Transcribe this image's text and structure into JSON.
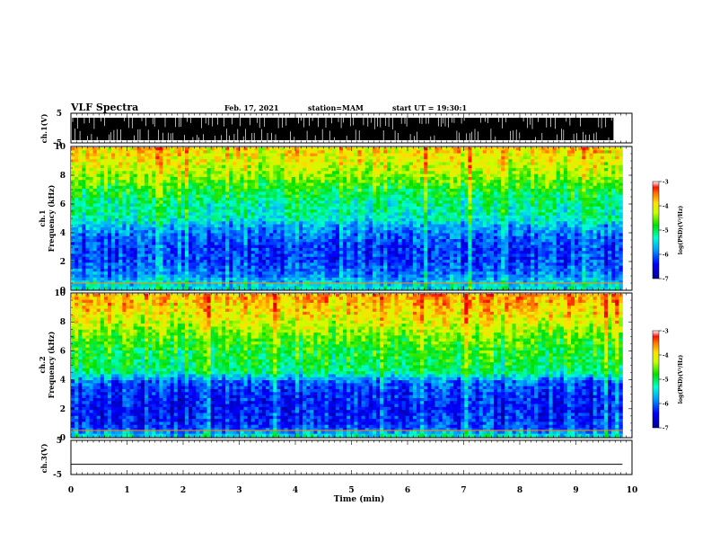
{
  "header": {
    "title": "VLF Spectra",
    "date": "Feb. 17, 2021",
    "station": "station=MAM",
    "start": "start UT = 19:30:1"
  },
  "chart_data": [
    {
      "type": "line",
      "name": "ch1-waveform",
      "ylabel": "ch.1(V)",
      "ylim": [
        -5,
        5
      ],
      "yticks": [
        "5",
        "-5"
      ],
      "xlim": [
        0,
        10
      ],
      "description_level": "dense broadband waveform, amplitude nearly full scale"
    },
    {
      "type": "heatmap",
      "name": "ch1-spectrogram",
      "ylabel": [
        "ch.1",
        "Frequency (kHz)"
      ],
      "ylim": [
        0,
        10
      ],
      "yticks": [
        "0",
        "2",
        "4",
        "6",
        "8",
        "10"
      ],
      "xlim": [
        0,
        9.83
      ],
      "colorbar": {
        "label": "log(PSD)(V²/Hz)",
        "ticks": [
          "-3",
          "-4",
          "-5",
          "-6",
          "-7"
        ],
        "range": [
          -7,
          -3
        ]
      },
      "profile_khz": [
        0,
        0.5,
        1,
        2,
        3,
        3.8,
        4.5,
        5,
        6,
        7,
        8,
        9,
        10
      ],
      "profile_logpsd": [
        -5.4,
        -5.6,
        -5.9,
        -6.2,
        -6.2,
        -6.0,
        -5.7,
        -5.3,
        -5.2,
        -4.9,
        -4.4,
        -4.1,
        -3.9
      ]
    },
    {
      "type": "heatmap",
      "name": "ch2-spectrogram",
      "ylabel": [
        "ch.2",
        "Frequency (kHz)"
      ],
      "ylim": [
        0,
        10
      ],
      "yticks": [
        "0",
        "2",
        "4",
        "6",
        "8",
        "10"
      ],
      "xlim": [
        0,
        9.83
      ],
      "colorbar": {
        "label": "log(PSD)(V²/Hz)",
        "ticks": [
          "-3",
          "-4",
          "-5",
          "-6",
          "-7"
        ],
        "range": [
          -7,
          -3
        ]
      },
      "profile_khz": [
        0,
        0.5,
        1,
        2,
        3,
        3.8,
        4.5,
        5,
        6,
        7,
        8,
        9,
        10
      ],
      "profile_logpsd": [
        -5.3,
        -6.1,
        -6.3,
        -6.4,
        -6.3,
        -6.1,
        -5.2,
        -5.0,
        -4.9,
        -4.6,
        -4.2,
        -3.9,
        -3.7
      ]
    },
    {
      "type": "line",
      "name": "ch3-waveform",
      "ylabel": "ch.3(V)",
      "ylim": [
        -5,
        5
      ],
      "yticks": [
        "5",
        "-5"
      ],
      "xlim": [
        0,
        10
      ],
      "constant_value": -2
    }
  ],
  "xaxis": {
    "label": "Time (min)",
    "ticks": [
      "0",
      "1",
      "2",
      "3",
      "4",
      "5",
      "6",
      "7",
      "8",
      "9",
      "10"
    ],
    "range": [
      0,
      10
    ]
  }
}
